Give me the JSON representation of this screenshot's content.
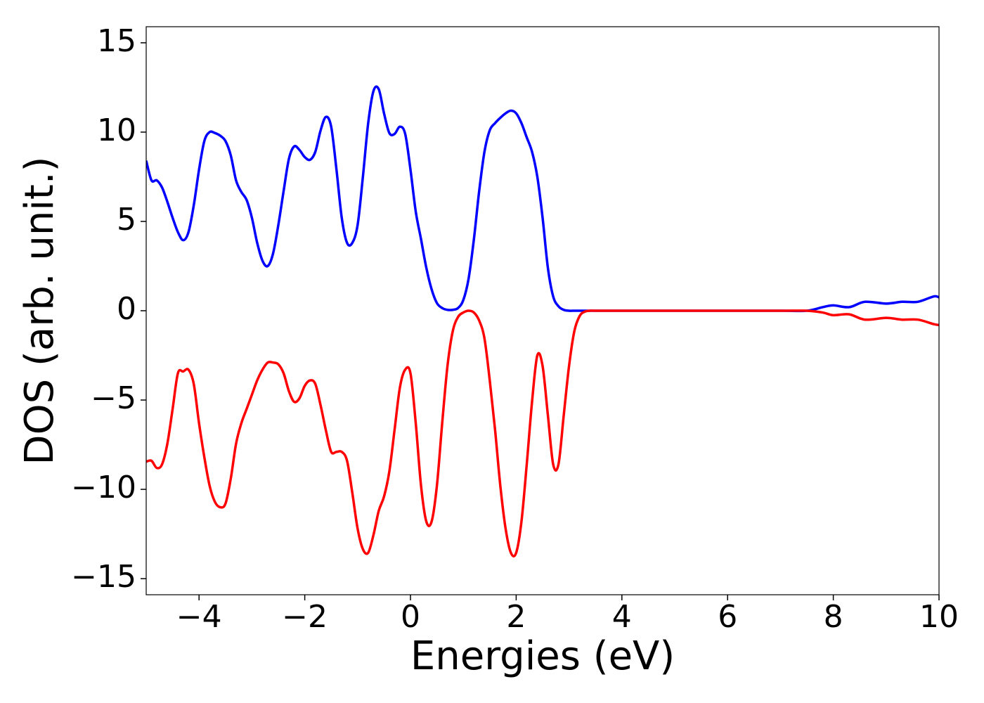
{
  "chart_data": {
    "type": "line",
    "x_label": "Energies (eV)",
    "y_label": "DOS (arb. unit.)",
    "x": [
      -5,
      -4.9,
      -4.8,
      -4.7,
      -4.6,
      -4.5,
      -4.4,
      -4.3,
      -4.2,
      -4.1,
      -4.0,
      -3.9,
      -3.8,
      -3.7,
      -3.6,
      -3.5,
      -3.4,
      -3.3,
      -3.2,
      -3.1,
      -3.0,
      -2.9,
      -2.8,
      -2.7,
      -2.6,
      -2.5,
      -2.4,
      -2.3,
      -2.2,
      -2.1,
      -2.0,
      -1.9,
      -1.8,
      -1.7,
      -1.6,
      -1.5,
      -1.4,
      -1.3,
      -1.2,
      -1.1,
      -1.0,
      -0.9,
      -0.8,
      -0.7,
      -0.6,
      -0.5,
      -0.4,
      -0.3,
      -0.2,
      -0.1,
      0,
      0.1,
      0.2,
      0.3,
      0.4,
      0.5,
      0.6,
      0.7,
      0.8,
      0.9,
      1.0,
      1.1,
      1.2,
      1.3,
      1.4,
      1.5,
      1.6,
      1.7,
      1.8,
      1.9,
      2.0,
      2.1,
      2.2,
      2.3,
      2.4,
      2.5,
      2.6,
      2.7,
      2.8,
      2.9,
      3.0,
      3.1,
      3.2,
      3.3,
      3.4,
      3.5,
      4,
      5,
      6,
      7,
      7.5,
      7.8,
      8.0,
      8.3,
      8.6,
      9.0,
      9.3,
      9.6,
      9.9,
      10
    ],
    "series": [
      {
        "color": "#0000ff",
        "values": [
          8.4,
          7.3,
          7.3,
          6.9,
          6.1,
          5.2,
          4.4,
          3.95,
          4.4,
          5.9,
          7.9,
          9.5,
          10.0,
          9.95,
          9.8,
          9.5,
          8.7,
          7.3,
          6.65,
          6.2,
          5.2,
          3.8,
          2.8,
          2.5,
          3.2,
          4.8,
          6.7,
          8.5,
          9.2,
          9.0,
          8.6,
          8.45,
          8.9,
          10.1,
          10.85,
          10.3,
          7.9,
          5.2,
          3.8,
          3.8,
          4.8,
          7.5,
          10.5,
          12.3,
          12.4,
          11.05,
          9.95,
          9.9,
          10.3,
          9.9,
          7.9,
          5.55,
          4.0,
          2.4,
          1.2,
          0.43,
          0.15,
          0.05,
          0.05,
          0.15,
          0.6,
          1.8,
          4.0,
          6.7,
          8.9,
          10.1,
          10.5,
          10.8,
          11.05,
          11.2,
          11.05,
          10.5,
          9.7,
          8.9,
          7.5,
          5.2,
          2.4,
          0.8,
          0.25,
          0.05,
          0,
          0,
          0,
          0,
          0,
          0,
          0,
          0,
          0,
          0,
          0,
          0.2,
          0.3,
          0.2,
          0.5,
          0.4,
          0.5,
          0.5,
          0.8,
          0.75
        ]
      },
      {
        "color": "#ff0000",
        "values": [
          -8.45,
          -8.4,
          -8.8,
          -8.6,
          -7.45,
          -5.5,
          -3.5,
          -3.4,
          -3.3,
          -4.1,
          -6.3,
          -8.2,
          -9.8,
          -10.7,
          -11.0,
          -10.8,
          -9.4,
          -7.45,
          -6.3,
          -5.5,
          -4.7,
          -3.9,
          -3.3,
          -2.9,
          -2.9,
          -3.0,
          -3.5,
          -4.5,
          -5.1,
          -4.9,
          -4.2,
          -3.9,
          -4.1,
          -5.3,
          -6.7,
          -7.9,
          -7.9,
          -7.9,
          -8.4,
          -10.2,
          -12.2,
          -13.35,
          -13.55,
          -12.55,
          -11.2,
          -10.4,
          -9.0,
          -6.65,
          -4.3,
          -3.3,
          -3.5,
          -6.3,
          -9.8,
          -11.8,
          -11.8,
          -9.8,
          -6.3,
          -3.1,
          -1.15,
          -0.35,
          -0.1,
          0,
          -0.1,
          -0.55,
          -1.55,
          -3.9,
          -6.65,
          -9.8,
          -12.2,
          -13.55,
          -13.55,
          -11.8,
          -8.6,
          -5.1,
          -2.5,
          -3.1,
          -5.85,
          -8.6,
          -8.6,
          -5.85,
          -3.1,
          -1.15,
          -0.3,
          -0.05,
          0,
          0,
          0,
          0,
          0,
          0,
          0,
          -0.1,
          -0.25,
          -0.2,
          -0.5,
          -0.4,
          -0.5,
          -0.5,
          -0.75,
          -0.8
        ]
      }
    ],
    "xlim": [
      -5,
      10
    ],
    "xticks": [
      {
        "value": -4,
        "label": "−4"
      },
      {
        "value": -2,
        "label": "−2"
      },
      0,
      2,
      4,
      6,
      8,
      10
    ],
    "ylim": [
      -15.9,
      15.9
    ],
    "yticks": [
      {
        "value": -15,
        "label": "−15"
      },
      {
        "value": -10,
        "label": "−10"
      },
      {
        "value": -5,
        "label": "−5"
      },
      0,
      5,
      10,
      15
    ],
    "grid": false
  }
}
